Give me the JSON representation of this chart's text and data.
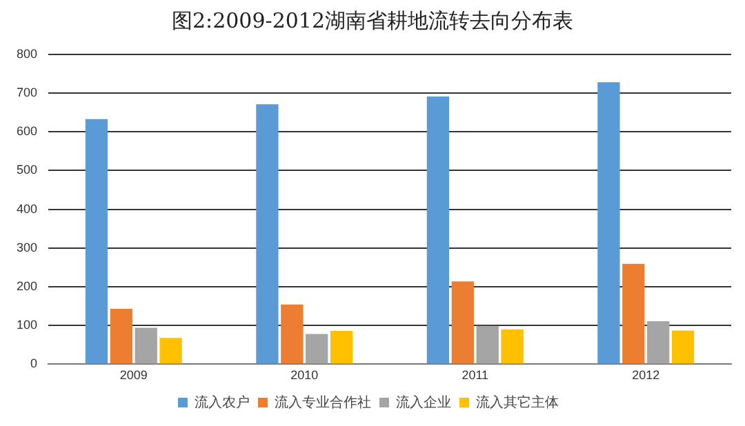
{
  "chart_data": {
    "type": "bar",
    "title": "图2:2009-2012湖南省耕地流转去向分布表",
    "categories": [
      "2009",
      "2010",
      "2011",
      "2012"
    ],
    "series": [
      {
        "name": "流入农户",
        "color": "#5b9bd5",
        "values": [
          633,
          671,
          691,
          728
        ]
      },
      {
        "name": "流入专业合作社",
        "color": "#ed7d31",
        "values": [
          143,
          154,
          214,
          259
        ]
      },
      {
        "name": "流入企业",
        "color": "#a5a5a5",
        "values": [
          94,
          78,
          99,
          111
        ]
      },
      {
        "name": "流入其它主体",
        "color": "#ffc000",
        "values": [
          68,
          86,
          90,
          87
        ]
      }
    ],
    "ylim": [
      0,
      800
    ],
    "yticks": [
      0,
      100,
      200,
      300,
      400,
      500,
      600,
      700,
      800
    ],
    "grid": "y",
    "legend": "bottom"
  }
}
